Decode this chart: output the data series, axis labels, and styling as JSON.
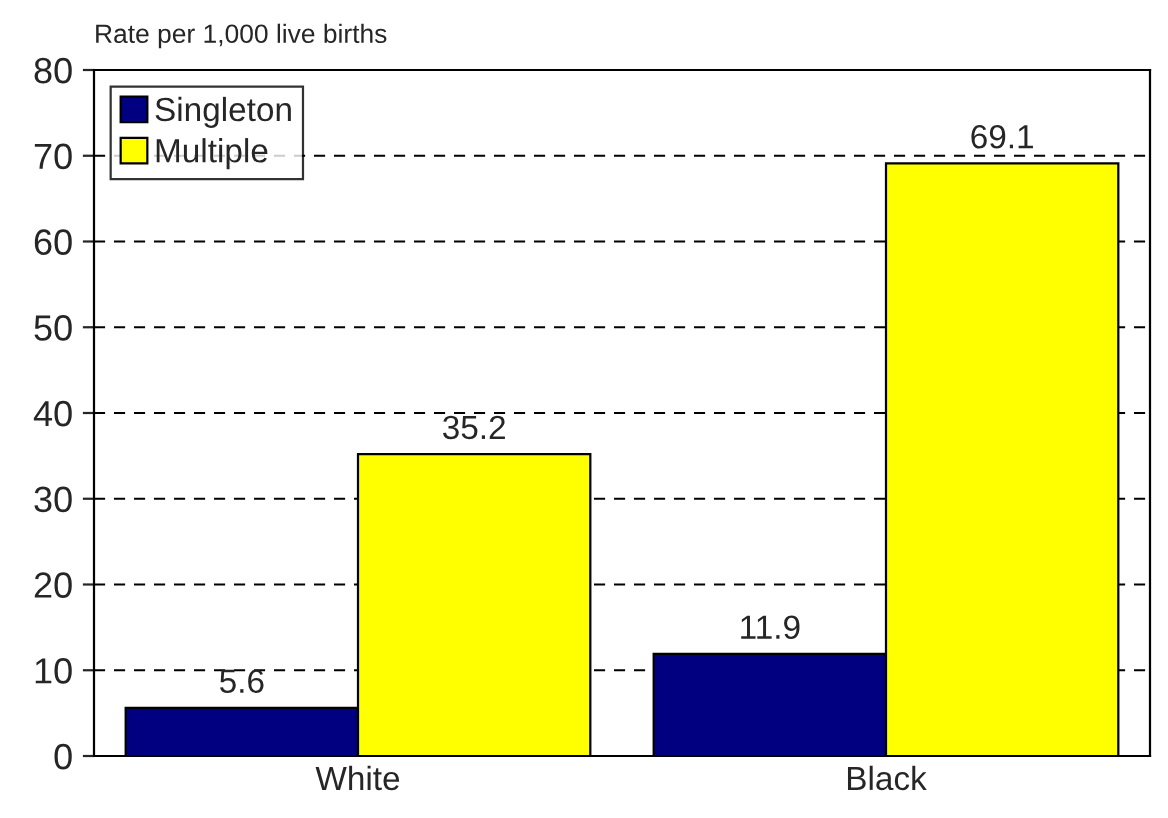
{
  "chart_data": {
    "type": "bar",
    "ylabel": "Rate per 1,000 live births",
    "categories": [
      "White",
      "Black"
    ],
    "series": [
      {
        "name": "Singleton",
        "color": "#000080",
        "values": [
          5.6,
          11.9
        ]
      },
      {
        "name": "Multiple",
        "color": "#ffff00",
        "values": [
          35.2,
          69.1
        ]
      }
    ],
    "ylim": [
      0,
      80
    ],
    "yticks": [
      0,
      10,
      20,
      30,
      40,
      50,
      60,
      70,
      80
    ],
    "grid": "y",
    "legend": "top left",
    "data_labels": true
  }
}
